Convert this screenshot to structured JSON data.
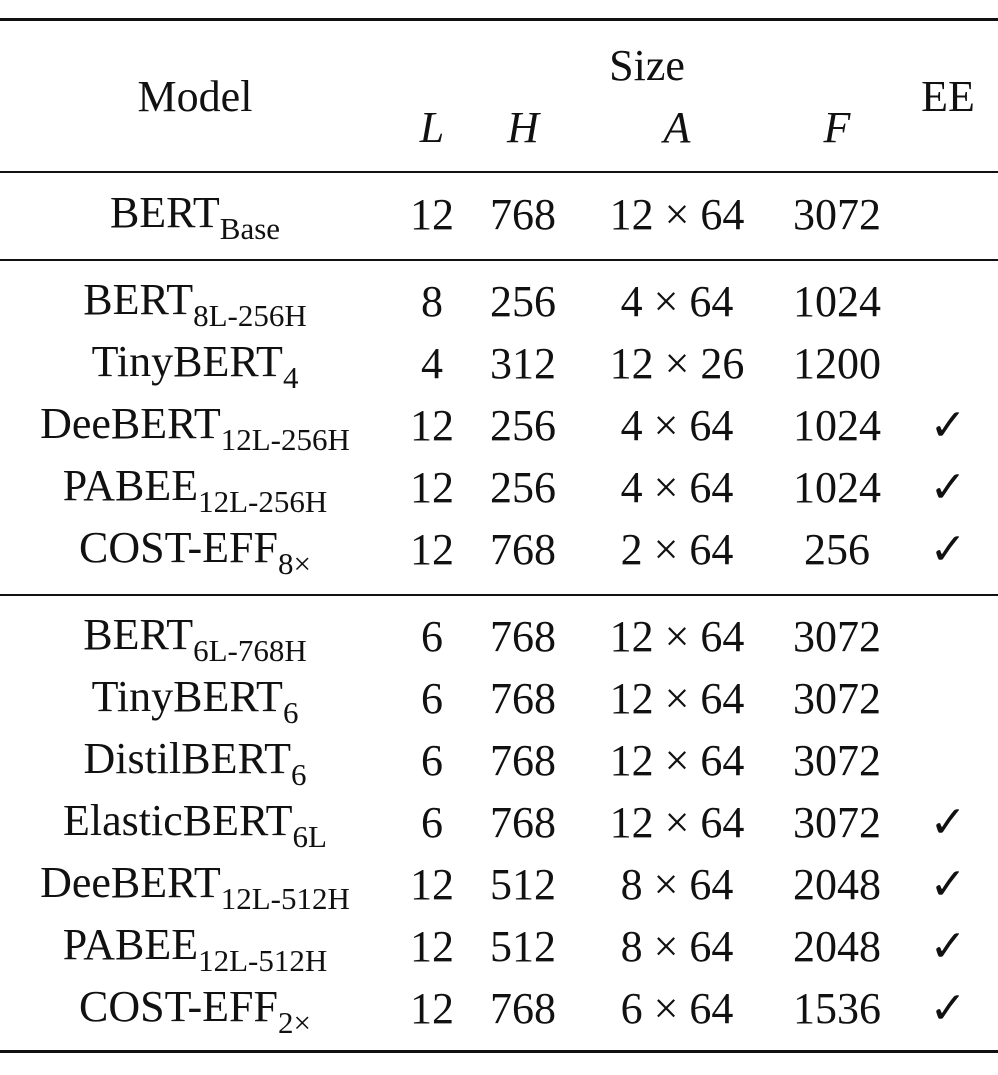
{
  "header": {
    "model": "Model",
    "size": "Size",
    "columns": [
      "L",
      "H",
      "A",
      "F"
    ],
    "ee": "EE"
  },
  "groups": [
    {
      "rows": [
        {
          "model": "BERT",
          "sub": "Base",
          "L": 12,
          "H": 768,
          "A": "12 × 64",
          "F": 3072,
          "EE": null
        }
      ]
    },
    {
      "rows": [
        {
          "model": "BERT",
          "sub": "8L-256H",
          "L": 8,
          "H": 256,
          "A": "4 × 64",
          "F": 1024,
          "EE": null
        },
        {
          "model": "TinyBERT",
          "sub": "4",
          "L": 4,
          "H": 312,
          "A": "12 × 26",
          "F": 1200,
          "EE": null
        },
        {
          "model": "DeeBERT",
          "sub": "12L-256H",
          "L": 12,
          "H": 256,
          "A": "4 × 64",
          "F": 1024,
          "EE": "✓"
        },
        {
          "model": "PABEE",
          "sub": "12L-256H",
          "L": 12,
          "H": 256,
          "A": "4 × 64",
          "F": 1024,
          "EE": "✓"
        },
        {
          "model": "COST-EFF",
          "sub": "8×",
          "L": 12,
          "H": 768,
          "A": "2 × 64",
          "F": 256,
          "EE": "✓"
        }
      ]
    },
    {
      "rows": [
        {
          "model": "BERT",
          "sub": "6L-768H",
          "L": 6,
          "H": 768,
          "A": "12 × 64",
          "F": 3072,
          "EE": null
        },
        {
          "model": "TinyBERT",
          "sub": "6",
          "L": 6,
          "H": 768,
          "A": "12 × 64",
          "F": 3072,
          "EE": null
        },
        {
          "model": "DistilBERT",
          "sub": "6",
          "L": 6,
          "H": 768,
          "A": "12 × 64",
          "F": 3072,
          "EE": null
        },
        {
          "model": "ElasticBERT",
          "sub": "6L",
          "L": 6,
          "H": 768,
          "A": "12 × 64",
          "F": 3072,
          "EE": "✓"
        },
        {
          "model": "DeeBERT",
          "sub": "12L-512H",
          "L": 12,
          "H": 512,
          "A": "8 × 64",
          "F": 2048,
          "EE": "✓"
        },
        {
          "model": "PABEE",
          "sub": "12L-512H",
          "L": 12,
          "H": 512,
          "A": "8 × 64",
          "F": 2048,
          "EE": "✓"
        },
        {
          "model": "COST-EFF",
          "sub": "2×",
          "L": 12,
          "H": 768,
          "A": "6 × 64",
          "F": 1536,
          "EE": "✓"
        }
      ]
    }
  ]
}
